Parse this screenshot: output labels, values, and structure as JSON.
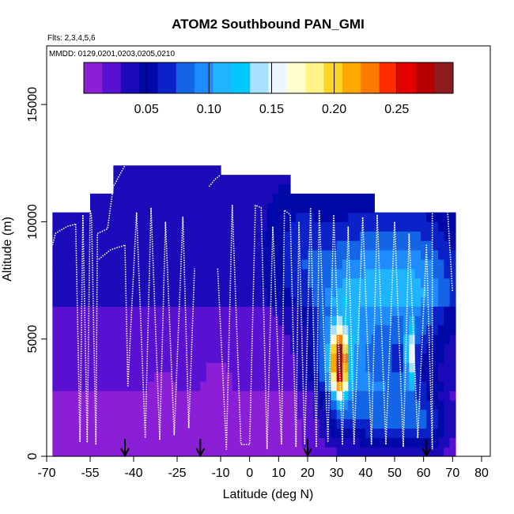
{
  "chart_data": {
    "type": "heatmap",
    "title": "ATOM2 Southbound PAN_GMI",
    "flights_note": "Flts: 2,3,4,5,6",
    "dates_note": "MMDD: 0129,0201,0203,0205,0210",
    "xlabel": "Latitude (deg N)",
    "ylabel": "Altitude (m)",
    "xlim": [
      -70,
      83
    ],
    "ylim": [
      0,
      17500
    ],
    "x_ticks": [
      -70,
      -55,
      -40,
      -25,
      -10,
      0,
      10,
      20,
      30,
      40,
      50,
      60,
      70,
      80
    ],
    "x_tick_labels": [
      "-70",
      "-55",
      "-40",
      "-25",
      "-10",
      "0",
      "10",
      "20",
      "30",
      "40",
      "50",
      "60",
      "70",
      "80"
    ],
    "y_ticks": [
      0,
      5000,
      10000,
      15000
    ],
    "y_tick_labels": [
      "0",
      "5000",
      "10000",
      "15000"
    ],
    "colorbar": {
      "range": [
        0.0,
        0.295
      ],
      "ticks": [
        0.05,
        0.1,
        0.15,
        0.2,
        0.25
      ],
      "tick_labels": [
        "0.05",
        "0.10",
        "0.15",
        "0.20",
        "0.25"
      ],
      "colors": [
        "#8a1fd6",
        "#5a10d0",
        "#1a0ab8",
        "#0008a8",
        "#0a22c8",
        "#1464e6",
        "#1e8cff",
        "#1fb4ff",
        "#00c8ff",
        "#a8e0ff",
        "#eef6ff",
        "#ffffd0",
        "#fff38a",
        "#ffd42a",
        "#ffa800",
        "#ff7a00",
        "#ff2a00",
        "#e40000",
        "#b40000",
        "#8c1c1c"
      ]
    },
    "data_grid": {
      "x_step": 2,
      "y_step": 400,
      "columns": [
        {
          "x0": -68,
          "x1": -55,
          "top": 10400
        },
        {
          "x0": -55,
          "x1": -47,
          "top": 11000
        },
        {
          "x0": -47,
          "x1": -10,
          "top": 12400
        },
        {
          "x0": -10,
          "x1": 14,
          "top": 12000
        },
        {
          "x0": 14,
          "x1": 43,
          "top": 11200
        },
        {
          "x0": 43,
          "x1": 71,
          "top": 10400
        }
      ],
      "background": [
        {
          "alt0": 0,
          "alt1": 3000,
          "value": 0.012
        },
        {
          "alt0": 3000,
          "alt1": 6500,
          "value": 0.025
        },
        {
          "alt0": 6500,
          "alt1": 20000,
          "value": 0.04
        }
      ],
      "features": [
        {
          "x": 30,
          "alt": 4000,
          "sx": 8,
          "sy": 3000,
          "amp": 0.06
        },
        {
          "x": 38,
          "alt": 6500,
          "sx": 12,
          "sy": 3500,
          "amp": 0.055
        },
        {
          "x": 57,
          "alt": 7000,
          "sx": 14,
          "sy": 3000,
          "amp": 0.065
        },
        {
          "x": 45,
          "alt": 2000,
          "sx": 12,
          "sy": 1800,
          "amp": 0.06
        },
        {
          "x": 60,
          "alt": 1500,
          "sx": 10,
          "sy": 1500,
          "amp": 0.05
        },
        {
          "x": 18,
          "alt": 8500,
          "sx": 10,
          "sy": 2500,
          "amp": 0.03
        },
        {
          "x": 31,
          "alt": 4000,
          "sx": 2.5,
          "sy": 1300,
          "amp": 0.21
        },
        {
          "x": 55.5,
          "alt": 4300,
          "sx": 1.6,
          "sy": 1300,
          "amp": 0.1
        },
        {
          "x": -10,
          "alt": 2500,
          "sx": 8,
          "sy": 2500,
          "amp": -0.015
        },
        {
          "x": -30,
          "alt": 2500,
          "sx": 12,
          "sy": 2500,
          "amp": -0.012
        }
      ]
    },
    "flight_profiles": [
      [
        [
          -68,
          9000
        ],
        [
          -67,
          9500
        ],
        [
          -63,
          9800
        ],
        [
          -60,
          9900
        ]
      ],
      [
        [
          -60,
          9900
        ],
        [
          -58.5,
          600
        ],
        [
          -57.5,
          10300
        ],
        [
          -56,
          600
        ]
      ],
      [
        [
          -56,
          600
        ],
        [
          -55,
          10500
        ],
        [
          -54.5,
          10200
        ],
        [
          -53,
          500
        ]
      ],
      [
        [
          -53,
          500
        ],
        [
          -52.5,
          9500
        ],
        [
          -49,
          9700
        ],
        [
          -47,
          11500
        ],
        [
          -43,
          12400
        ]
      ],
      [
        [
          -52,
          8400
        ],
        [
          -48,
          8800
        ],
        [
          -43,
          9000
        ]
      ],
      [
        [
          -43,
          9000
        ],
        [
          -42,
          3000
        ],
        [
          -39,
          10400
        ],
        [
          -36,
          800
        ]
      ],
      [
        [
          -36,
          800
        ],
        [
          -34,
          10600
        ],
        [
          -31,
          700
        ]
      ],
      [
        [
          -31,
          700
        ],
        [
          -29,
          10000
        ],
        [
          -26,
          900
        ]
      ],
      [
        [
          -26,
          900
        ],
        [
          -23,
          10200
        ],
        [
          -21,
          1200
        ]
      ],
      [
        [
          -21,
          1200
        ],
        [
          -19,
          8000
        ]
      ],
      [
        [
          -14,
          11500
        ],
        [
          -12,
          11800
        ],
        [
          -10,
          12000
        ]
      ],
      [
        [
          -11,
          8000
        ],
        [
          -8,
          300
        ],
        [
          -6,
          10700
        ],
        [
          -3,
          500
        ],
        [
          0,
          500
        ],
        [
          2,
          10700
        ],
        [
          4,
          10600
        ],
        [
          6,
          300
        ]
      ],
      [
        [
          6,
          300
        ],
        [
          8,
          9800
        ],
        [
          11,
          500
        ],
        [
          12,
          10500
        ],
        [
          14,
          10300
        ],
        [
          16,
          400
        ]
      ],
      [
        [
          16,
          400
        ],
        [
          17,
          10000
        ],
        [
          19,
          500
        ],
        [
          21,
          10600
        ],
        [
          23,
          400
        ]
      ],
      [
        [
          23,
          400
        ],
        [
          24,
          10500
        ],
        [
          27,
          600
        ],
        [
          29,
          10300
        ],
        [
          32,
          500
        ]
      ],
      [
        [
          32,
          500
        ],
        [
          34,
          9800
        ],
        [
          36,
          500
        ],
        [
          39,
          10200
        ],
        [
          42,
          500
        ]
      ],
      [
        [
          42,
          500
        ],
        [
          44,
          10300
        ],
        [
          47,
          500
        ],
        [
          50,
          10000
        ],
        [
          53,
          400
        ]
      ],
      [
        [
          53,
          400
        ],
        [
          55,
          9500
        ],
        [
          58,
          800
        ],
        [
          61,
          9000
        ],
        [
          63,
          300
        ]
      ],
      [
        [
          63,
          300
        ],
        [
          63,
          11200
        ],
        [
          66,
          11300
        ],
        [
          68,
          11000
        ],
        [
          70,
          7000
        ]
      ]
    ],
    "arrows": [
      -43,
      -17,
      20,
      61
    ]
  }
}
